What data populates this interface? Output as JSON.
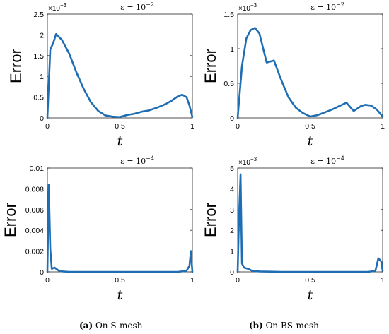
{
  "chart_data": [
    {
      "type": "line",
      "title": "ε = 10",
      "title_exp": "−2",
      "xlabel": "t",
      "ylabel": "Error",
      "multiplier": "×10",
      "multiplier_exp": "−3",
      "xlim": [
        0,
        1
      ],
      "ylim": [
        0,
        2.5
      ],
      "xticks": [
        0,
        0.5,
        1
      ],
      "xtick_labels": [
        "0",
        "0.5",
        "1"
      ],
      "yticks": [
        0,
        0.5,
        1,
        1.5,
        2,
        2.5
      ],
      "ytick_labels": [
        "0",
        "0.5",
        "1",
        "1.5",
        "2",
        "2.5"
      ],
      "color": "#1f6db3",
      "series": [
        {
          "x": [
            0,
            0.02,
            0.04,
            0.06,
            0.08,
            0.1,
            0.15,
            0.2,
            0.25,
            0.3,
            0.35,
            0.4,
            0.45,
            0.5,
            0.55,
            0.6,
            0.65,
            0.7,
            0.75,
            0.8,
            0.85,
            0.9,
            0.93,
            0.96,
            0.98,
            1.0
          ],
          "y": [
            0,
            1.65,
            1.8,
            2.02,
            1.95,
            1.88,
            1.55,
            1.1,
            0.7,
            0.38,
            0.17,
            0.06,
            0.03,
            0.02,
            0.07,
            0.1,
            0.15,
            0.18,
            0.24,
            0.31,
            0.4,
            0.52,
            0.56,
            0.5,
            0.3,
            0.02
          ]
        }
      ]
    },
    {
      "type": "line",
      "title": "ε = 10",
      "title_exp": "−2",
      "xlabel": "t",
      "ylabel": "Error",
      "multiplier": "×10",
      "multiplier_exp": "−3",
      "xlim": [
        0,
        1
      ],
      "ylim": [
        0,
        1.5
      ],
      "xticks": [
        0,
        0.5,
        1
      ],
      "xtick_labels": [
        "0",
        "0.5",
        "1"
      ],
      "yticks": [
        0,
        0.5,
        1,
        1.5
      ],
      "ytick_labels": [
        "0",
        "0.5",
        "1",
        "1.5"
      ],
      "color": "#1f6db3",
      "series": [
        {
          "x": [
            0,
            0.03,
            0.06,
            0.09,
            0.12,
            0.15,
            0.2,
            0.25,
            0.3,
            0.35,
            0.4,
            0.45,
            0.5,
            0.55,
            0.6,
            0.65,
            0.7,
            0.75,
            0.8,
            0.85,
            0.88,
            0.92,
            0.96,
            1.0
          ],
          "y": [
            0,
            0.75,
            1.15,
            1.27,
            1.3,
            1.22,
            0.8,
            0.83,
            0.55,
            0.3,
            0.15,
            0.07,
            0.02,
            0.04,
            0.08,
            0.12,
            0.17,
            0.22,
            0.1,
            0.17,
            0.19,
            0.18,
            0.12,
            0.02
          ]
        }
      ]
    },
    {
      "type": "line",
      "title": "ε = 10",
      "title_exp": "−4",
      "xlabel": "t",
      "ylabel": "Error",
      "xlim": [
        0,
        1
      ],
      "ylim": [
        0,
        0.01
      ],
      "xticks": [
        0,
        0.5,
        1
      ],
      "xtick_labels": [
        "0",
        "0.5",
        "1"
      ],
      "yticks": [
        0,
        0.002,
        0.004,
        0.006,
        0.008,
        0.01
      ],
      "ytick_labels": [
        "0",
        "0.002",
        "0.004",
        "0.006",
        "0.008",
        "0.01"
      ],
      "color": "#1f6db3",
      "series": [
        {
          "x": [
            0,
            0.01,
            0.02,
            0.03,
            0.05,
            0.08,
            0.1,
            0.15,
            0.3,
            0.5,
            0.7,
            0.9,
            0.96,
            0.98,
            0.99,
            1.0
          ],
          "y": [
            0,
            0.0084,
            0.0022,
            0.0003,
            0.0004,
            0.0001,
            5e-05,
            0.0,
            0.0,
            0.0,
            0.0,
            0.0,
            0.0001,
            0.0006,
            0.002,
            0.0
          ]
        }
      ]
    },
    {
      "type": "line",
      "title": "ε = 10",
      "title_exp": "−4",
      "xlabel": "t",
      "ylabel": "Error",
      "multiplier": "×10",
      "multiplier_exp": "−3",
      "xlim": [
        0,
        1
      ],
      "ylim": [
        0,
        5
      ],
      "xticks": [
        0,
        0.5,
        1
      ],
      "xtick_labels": [
        "0",
        "0.5",
        "1"
      ],
      "yticks": [
        0,
        1,
        2,
        3,
        4,
        5
      ],
      "ytick_labels": [
        "0",
        "1",
        "2",
        "3",
        "4",
        "5"
      ],
      "color": "#1f6db3",
      "series": [
        {
          "x": [
            0,
            0.01,
            0.02,
            0.03,
            0.045,
            0.07,
            0.1,
            0.15,
            0.3,
            0.5,
            0.7,
            0.9,
            0.95,
            0.97,
            0.99,
            1.0
          ],
          "y": [
            0,
            2.8,
            4.7,
            0.4,
            0.2,
            0.15,
            0.05,
            0.02,
            0.0,
            0.0,
            0.0,
            0.0,
            0.05,
            0.65,
            0.5,
            0.05
          ]
        }
      ]
    }
  ],
  "captions": [
    {
      "tag": "(a)",
      "text": " On S-mesh"
    },
    {
      "tag": "(b)",
      "text": " On BS-mesh"
    }
  ]
}
